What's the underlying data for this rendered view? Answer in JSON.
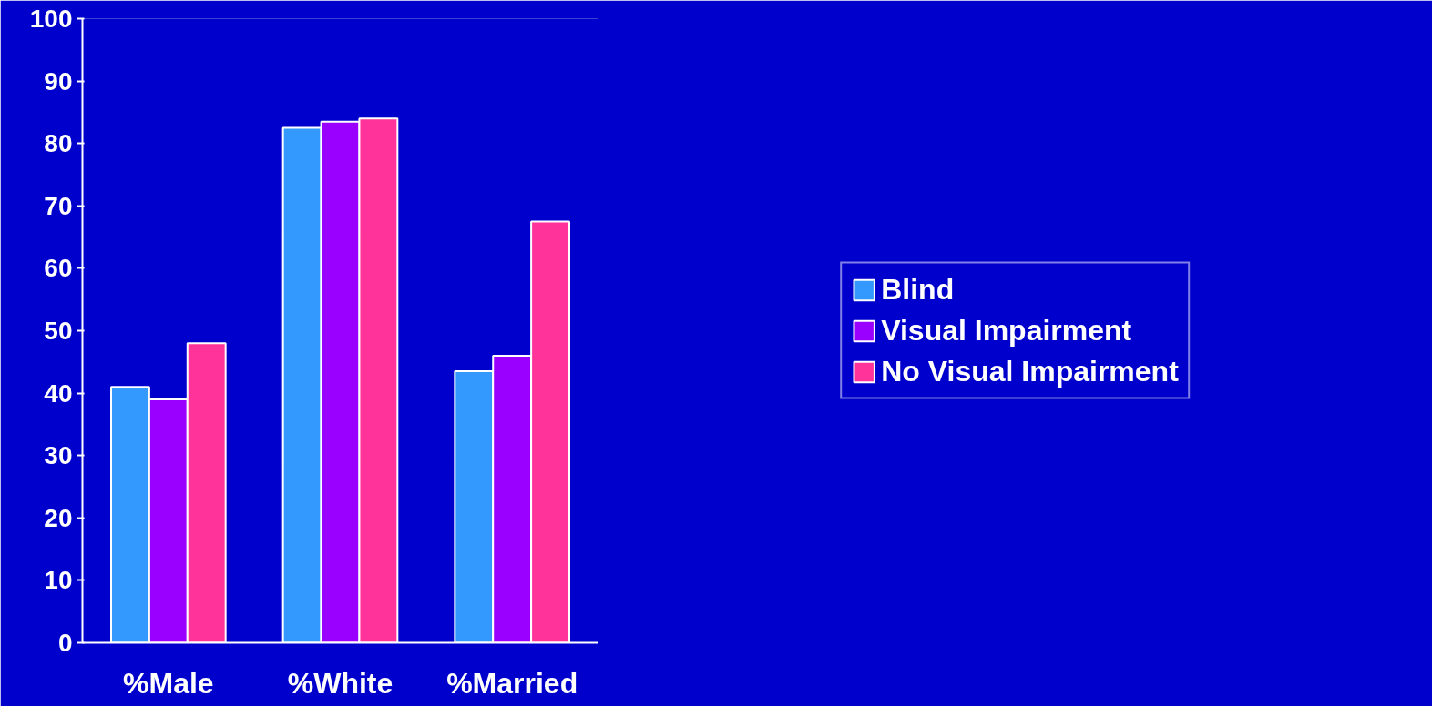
{
  "chart_data": {
    "type": "bar",
    "categories": [
      "%Male",
      "%White",
      "%Married"
    ],
    "series": [
      {
        "name": "Blind",
        "color": "#3399ff",
        "values": [
          41,
          82.5,
          43.5
        ]
      },
      {
        "name": "Visual Impairment",
        "color": "#9900ff",
        "values": [
          39,
          83.5,
          46
        ]
      },
      {
        "name": "No Visual Impairment",
        "color": "#ff3399",
        "values": [
          48,
          84,
          67.5
        ]
      }
    ],
    "ylim": [
      0,
      100
    ],
    "yticks": [
      0,
      10,
      20,
      30,
      40,
      50,
      60,
      70,
      80,
      90,
      100
    ],
    "grid": false,
    "legend": "right"
  }
}
